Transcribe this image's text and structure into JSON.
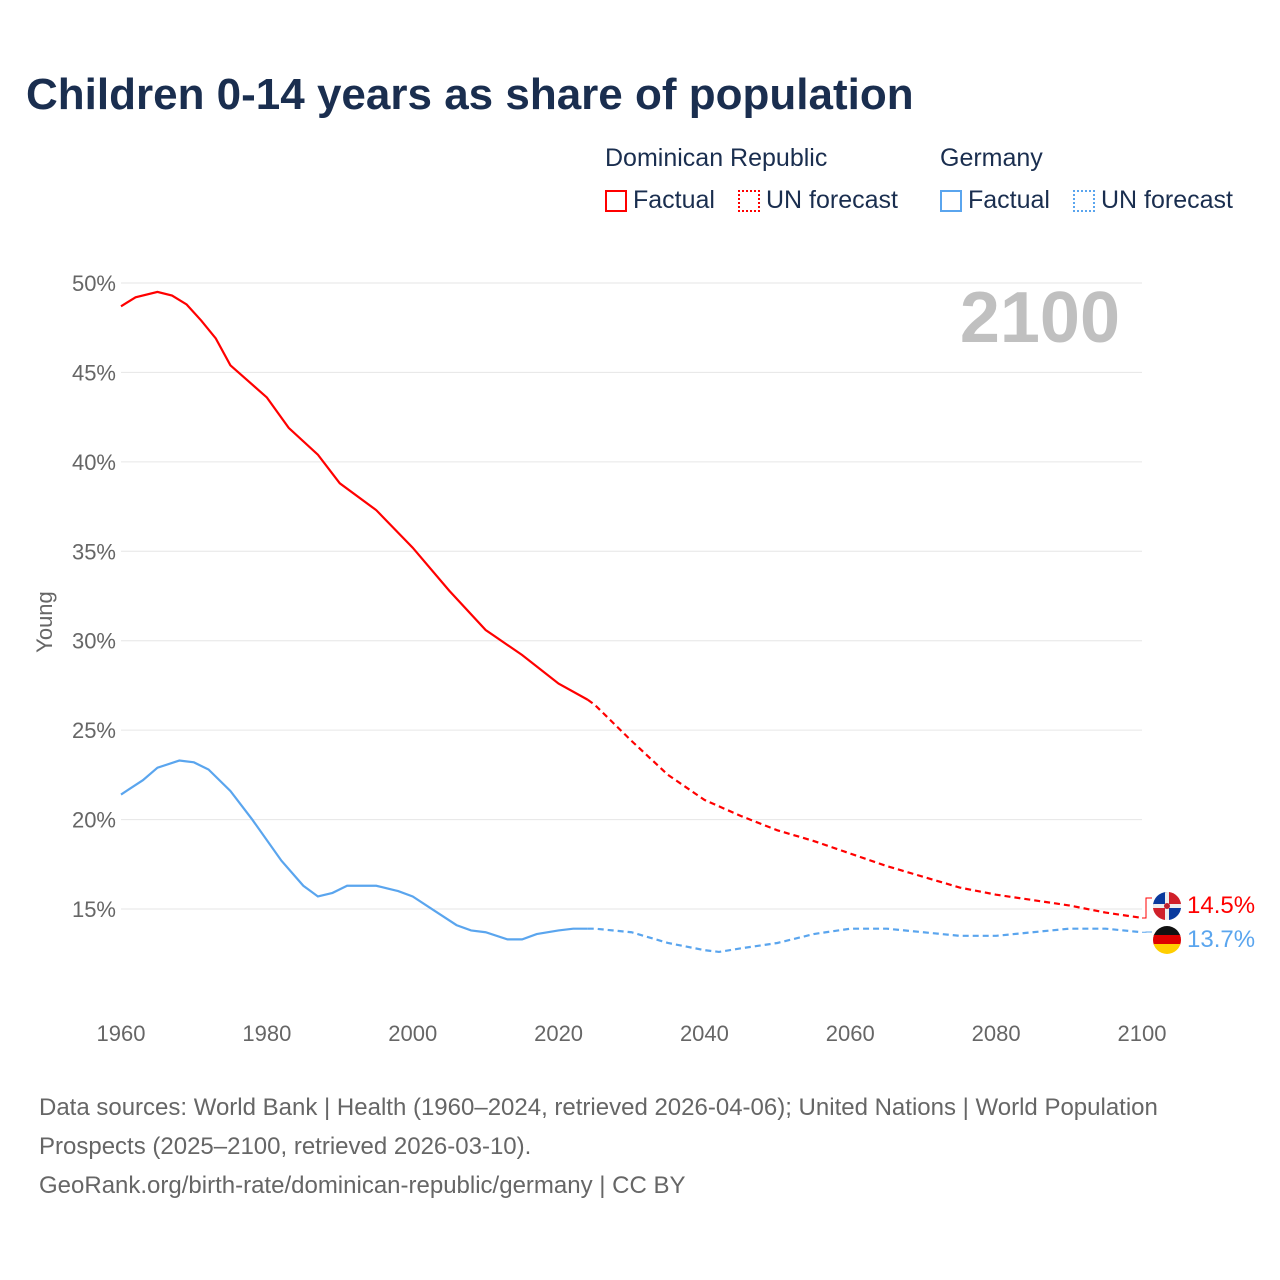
{
  "title": "Children 0-14 years as share of population",
  "legend": {
    "groups": [
      {
        "name": "Dominican Republic",
        "factual": "Factual",
        "forecast": "UN forecast",
        "color": "#ff0000"
      },
      {
        "name": "Germany",
        "factual": "Factual",
        "forecast": "UN forecast",
        "color": "#5aa5ee"
      }
    ]
  },
  "chart_data": {
    "type": "line",
    "title": "Children 0-14 years as share of population",
    "ylabel": "Young",
    "xlabel": "",
    "xlim": [
      1960,
      2100
    ],
    "ylim": [
      10,
      50
    ],
    "x_ticks": [
      "1960",
      "1980",
      "2000",
      "2020",
      "2040",
      "2060",
      "2080",
      "2100"
    ],
    "y_ticks": [
      "15%",
      "20%",
      "25%",
      "30%",
      "35%",
      "40%",
      "45%",
      "50%"
    ],
    "year_label": "2100",
    "factual_until": 2024,
    "series": [
      {
        "name": "Dominican Republic",
        "color": "#ff0000",
        "end_label": "14.5%",
        "x": [
          1960,
          1962,
          1965,
          1967,
          1969,
          1971,
          1973,
          1975,
          1980,
          1983,
          1987,
          1990,
          1995,
          2000,
          2005,
          2010,
          2015,
          2020,
          2024,
          2025,
          2030,
          2035,
          2040,
          2045,
          2050,
          2055,
          2060,
          2065,
          2070,
          2075,
          2080,
          2085,
          2090,
          2095,
          2100
        ],
        "y": [
          48.7,
          49.2,
          49.5,
          49.3,
          48.8,
          47.9,
          46.9,
          45.4,
          43.6,
          41.9,
          40.4,
          38.8,
          37.3,
          35.2,
          32.8,
          30.6,
          29.2,
          27.6,
          26.7,
          26.4,
          24.4,
          22.5,
          21.1,
          20.2,
          19.4,
          18.8,
          18.1,
          17.4,
          16.8,
          16.2,
          15.8,
          15.5,
          15.2,
          14.8,
          14.5
        ]
      },
      {
        "name": "Germany",
        "color": "#5aa5ee",
        "end_label": "13.7%",
        "x": [
          1960,
          1963,
          1965,
          1968,
          1970,
          1972,
          1975,
          1978,
          1982,
          1985,
          1987,
          1989,
          1991,
          1995,
          1998,
          2000,
          2003,
          2006,
          2008,
          2010,
          2013,
          2015,
          2017,
          2020,
          2022,
          2024,
          2025,
          2030,
          2035,
          2040,
          2042,
          2045,
          2050,
          2055,
          2060,
          2065,
          2070,
          2075,
          2080,
          2085,
          2090,
          2095,
          2100
        ],
        "y": [
          21.4,
          22.2,
          22.9,
          23.3,
          23.2,
          22.8,
          21.6,
          20.0,
          17.7,
          16.3,
          15.7,
          15.9,
          16.3,
          16.3,
          16.0,
          15.7,
          14.9,
          14.1,
          13.8,
          13.7,
          13.3,
          13.3,
          13.6,
          13.8,
          13.9,
          13.9,
          13.9,
          13.7,
          13.1,
          12.7,
          12.6,
          12.8,
          13.1,
          13.6,
          13.9,
          13.9,
          13.7,
          13.5,
          13.5,
          13.7,
          13.9,
          13.9,
          13.7
        ]
      }
    ]
  },
  "source": {
    "line1": "Data sources: World Bank | Health (1960–2024, retrieved 2026-04-06); United Nations | World Population Prospects (2025–2100, retrieved 2026-03-10).",
    "line2": "GeoRank.org/birth-rate/dominican-republic/germany | CC BY"
  }
}
